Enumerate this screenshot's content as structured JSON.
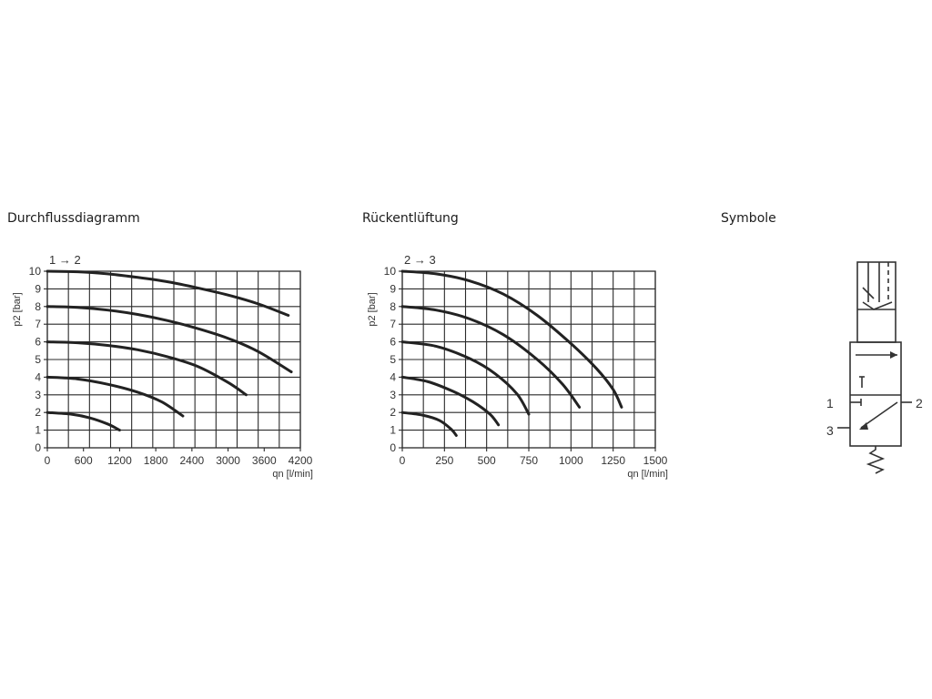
{
  "titles": {
    "flow": "Durchflussdiagramm",
    "exhaust": "Rückentlüftung",
    "symbols": "Symbole"
  },
  "chart_data": [
    {
      "type": "line",
      "title": "",
      "flow_label": "1 → 2",
      "ylabel": "p2 [bar]",
      "xlabel": "qn [l/min]",
      "xlim": [
        0,
        4200
      ],
      "ylim": [
        0,
        10
      ],
      "x_ticks": [
        0,
        600,
        1200,
        1800,
        2400,
        3000,
        3600,
        4200
      ],
      "y_ticks": [
        0,
        1,
        2,
        3,
        4,
        5,
        6,
        7,
        8,
        9,
        10
      ],
      "x_tick_labels": [
        "0",
        "600",
        "1200",
        "1800",
        "2400",
        "3000",
        "3600",
        "4200"
      ],
      "y_tick_labels": [
        "0",
        "1",
        "2",
        "3",
        "4",
        "5",
        "6",
        "7",
        "8",
        "9",
        "10"
      ],
      "grid": true,
      "series": [
        {
          "x": [
            0,
            500,
            1000,
            1500,
            2000,
            2500,
            3000,
            3500,
            4000
          ],
          "y": [
            10,
            9.97,
            9.85,
            9.65,
            9.4,
            9.05,
            8.65,
            8.15,
            7.5
          ]
        },
        {
          "x": [
            0,
            500,
            1000,
            1500,
            2000,
            2500,
            3000,
            3500,
            4050
          ],
          "y": [
            8,
            7.95,
            7.8,
            7.55,
            7.2,
            6.75,
            6.2,
            5.45,
            4.3
          ]
        },
        {
          "x": [
            0,
            500,
            1000,
            1500,
            2000,
            2500,
            3000,
            3300
          ],
          "y": [
            6,
            5.95,
            5.8,
            5.55,
            5.15,
            4.6,
            3.7,
            3.0
          ]
        },
        {
          "x": [
            0,
            500,
            1000,
            1500,
            1900,
            2250
          ],
          "y": [
            4,
            3.9,
            3.6,
            3.15,
            2.6,
            1.8
          ]
        },
        {
          "x": [
            0,
            400,
            700,
            1000,
            1200
          ],
          "y": [
            2,
            1.9,
            1.7,
            1.35,
            1.0
          ]
        }
      ]
    },
    {
      "type": "line",
      "title": "",
      "flow_label": "2 → 3",
      "ylabel": "p2 [bar]",
      "xlabel": "qn [l/min]",
      "xlim": [
        0,
        1500
      ],
      "ylim": [
        0,
        10
      ],
      "x_ticks": [
        0,
        250,
        500,
        750,
        1000,
        1250,
        1500
      ],
      "y_ticks": [
        0,
        1,
        2,
        3,
        4,
        5,
        6,
        7,
        8,
        9,
        10
      ],
      "x_tick_labels": [
        "0",
        "250",
        "500",
        "750",
        "1000",
        "1250",
        "1500"
      ],
      "y_tick_labels": [
        "0",
        "1",
        "2",
        "3",
        "4",
        "5",
        "6",
        "7",
        "8",
        "9",
        "10"
      ],
      "grid": true,
      "series": [
        {
          "x": [
            0,
            200,
            400,
            600,
            800,
            1000,
            1150,
            1250,
            1300
          ],
          "y": [
            10,
            9.85,
            9.45,
            8.7,
            7.5,
            5.9,
            4.5,
            3.3,
            2.3
          ]
        },
        {
          "x": [
            0,
            200,
            400,
            600,
            800,
            950,
            1050
          ],
          "y": [
            8,
            7.8,
            7.3,
            6.4,
            5.0,
            3.6,
            2.3
          ]
        },
        {
          "x": [
            0,
            200,
            400,
            550,
            680,
            750
          ],
          "y": [
            6,
            5.75,
            5.05,
            4.2,
            3.05,
            1.9
          ]
        },
        {
          "x": [
            0,
            150,
            300,
            420,
            520,
            570
          ],
          "y": [
            4,
            3.75,
            3.2,
            2.6,
            1.9,
            1.3
          ]
        },
        {
          "x": [
            0,
            120,
            220,
            290,
            320
          ],
          "y": [
            2,
            1.85,
            1.55,
            1.05,
            0.7
          ]
        }
      ]
    }
  ],
  "symbol": {
    "port_1": "1",
    "port_2": "2",
    "port_3": "3"
  }
}
